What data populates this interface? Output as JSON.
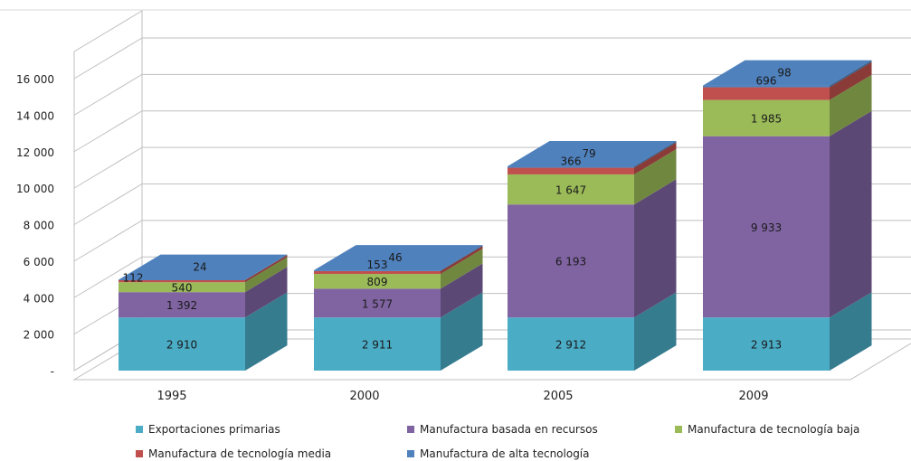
{
  "chart_data": {
    "type": "bar",
    "stacked": true,
    "three_d": true,
    "categories": [
      "1995",
      "2000",
      "2005",
      "2009"
    ],
    "ylim": [
      0,
      16000
    ],
    "yticks": [
      0,
      2000,
      4000,
      6000,
      8000,
      10000,
      12000,
      14000,
      16000
    ],
    "ytick_labels": [
      "-",
      "2 000",
      "4 000",
      "6 000",
      "8 000",
      "10 000",
      "12 000",
      "14 000",
      "16 000"
    ],
    "grid": true,
    "legend_position": "bottom",
    "series": [
      {
        "name": "Exportaciones primarias",
        "color": "#4bacc6",
        "values": [
          2910,
          2911,
          2912,
          2913
        ],
        "labels": [
          "2 910",
          "2 911",
          "2 912",
          "2 913"
        ]
      },
      {
        "name": "Manufactura basada en recursos",
        "color": "#8064a2",
        "values": [
          1392,
          1577,
          6193,
          9933
        ],
        "labels": [
          "1 392",
          "1 577",
          "6 193",
          "9 933"
        ]
      },
      {
        "name": "Manufactura de tecnología baja",
        "color": "#9bbb59",
        "values": [
          540,
          809,
          1647,
          1985
        ],
        "labels": [
          "540",
          "809",
          "1 647",
          "1 985"
        ]
      },
      {
        "name": "Manufactura de tecnología media",
        "color": "#c0504d",
        "values": [
          112,
          153,
          366,
          696
        ],
        "labels": [
          "112",
          "153",
          "366",
          "696"
        ]
      },
      {
        "name": "Manufactura de alta tecnología",
        "color": "#4f81bd",
        "values": [
          24,
          46,
          79,
          98
        ],
        "labels": [
          "24",
          "46",
          "79",
          "98"
        ]
      }
    ]
  }
}
